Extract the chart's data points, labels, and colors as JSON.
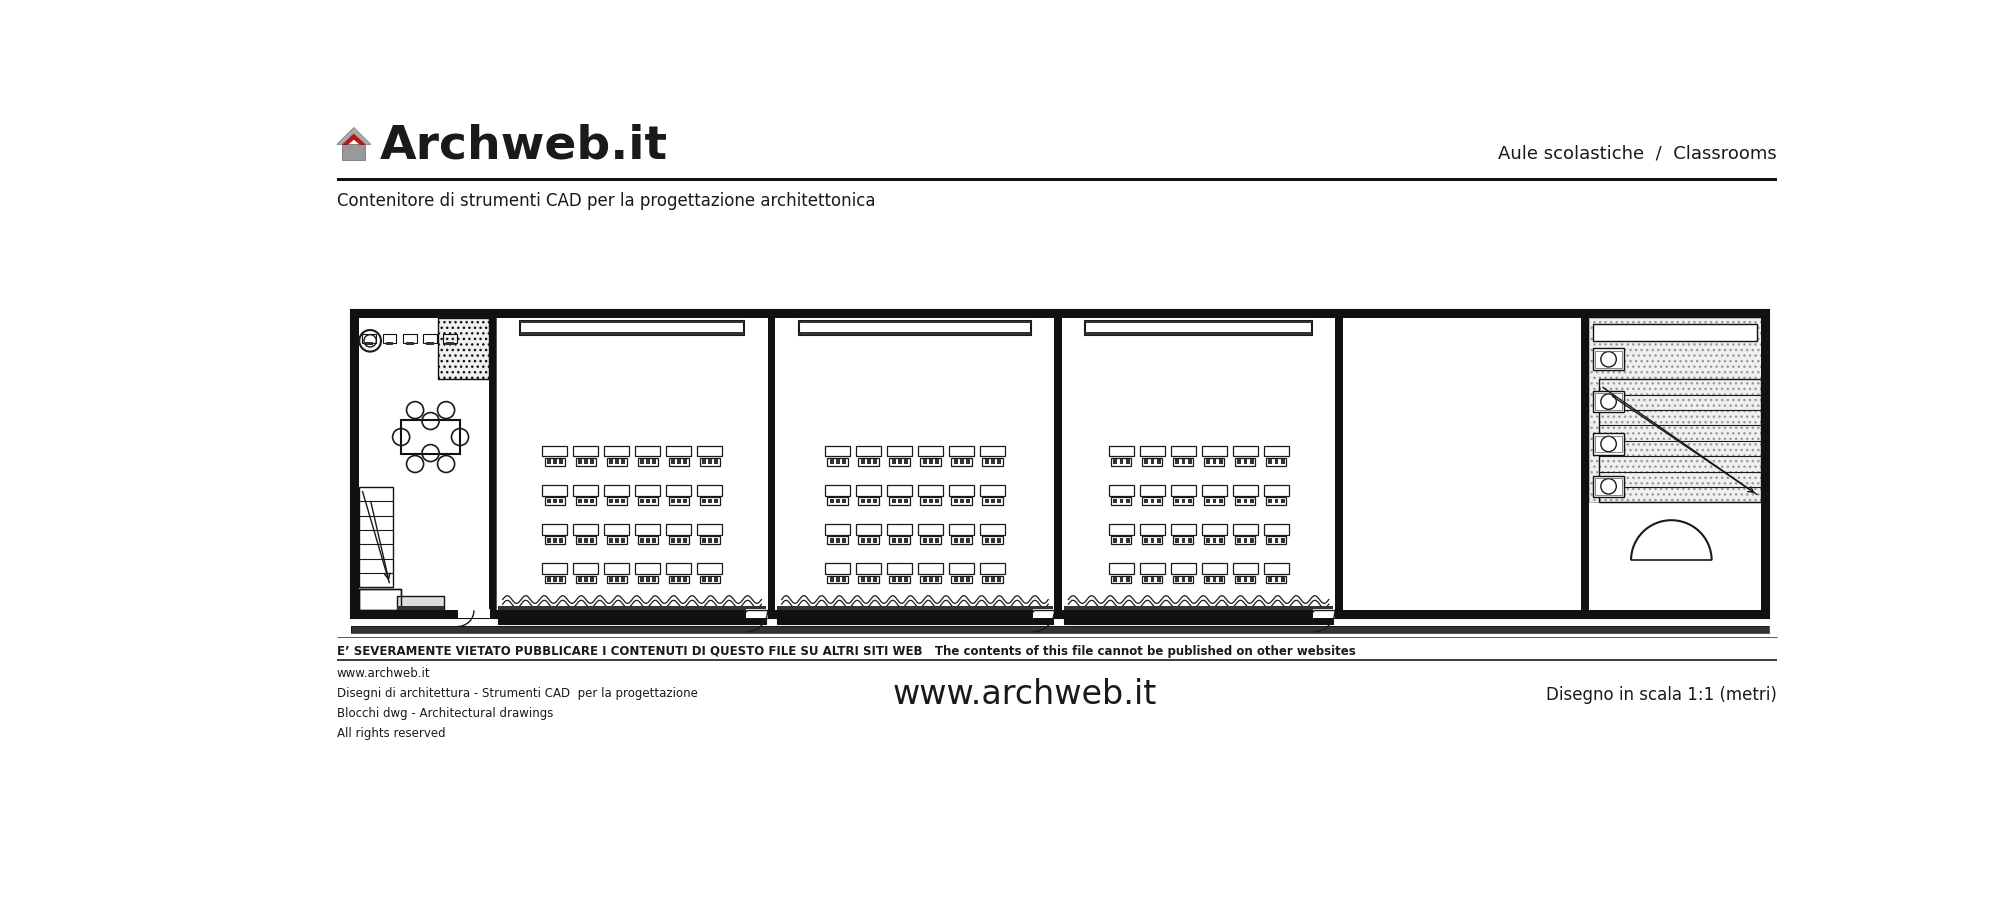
{
  "title_logo_text": "Archweb.it",
  "subtitle": "Contenitore di strumenti CAD per la progettazione architettonica",
  "top_right_text": "Aule scolastiche  /  Classrooms",
  "warning_text": "E’ SEVERAMENTE VIETATO PUBBLICARE I CONTENUTI DI QUESTO FILE SU ALTRI SITI WEB   The contents of this file cannot be published on other websites",
  "footer_left": "www.archweb.it\nDisegni di architettura - Strumenti CAD  per la progettazione\nBlocchi dwg - Architectural drawings\nAll rights reserved",
  "footer_center": "www.archweb.it",
  "footer_right": "Disegno in scala 1:1 (metri)",
  "bg_color": "#ffffff",
  "line_color": "#1a1a1a",
  "text_color": "#1a1a1a"
}
